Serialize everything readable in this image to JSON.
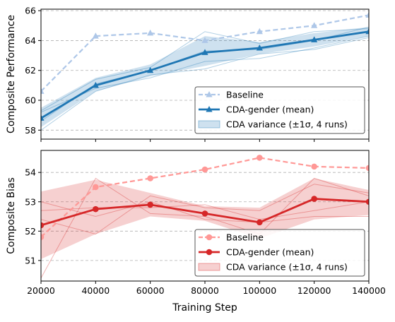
{
  "chart_data": [
    {
      "type": "line",
      "title": "",
      "xlabel": "",
      "ylabel": "Composite Performance",
      "x": [
        20000,
        40000,
        60000,
        80000,
        100000,
        120000,
        140000
      ],
      "xlim": [
        20000,
        140000
      ],
      "ylim": [
        57.4,
        66.1
      ],
      "yticks": [
        58,
        60,
        62,
        64,
        66
      ],
      "grid": "y-dashed",
      "legend_position": "lower-right",
      "colors": {
        "baseline": "#aec7e8",
        "mean": "#1f77b4",
        "band": "#1f77b4"
      },
      "series": [
        {
          "name": "Baseline",
          "style": "dashed",
          "marker": "triangle",
          "values": [
            60.6,
            64.3,
            64.5,
            64.0,
            64.6,
            65.0,
            65.7
          ]
        },
        {
          "name": "CDA-gender (mean)",
          "style": "solid",
          "marker": "triangle",
          "values": [
            58.8,
            61.0,
            62.0,
            63.2,
            63.5,
            64.05,
            64.6
          ]
        }
      ],
      "variance_band": {
        "name": "CDA variance (±1σ, 4 runs)",
        "lower": [
          58.2,
          60.6,
          61.6,
          62.3,
          63.1,
          63.6,
          64.3
        ],
        "upper": [
          59.5,
          61.5,
          62.4,
          64.3,
          63.9,
          64.5,
          64.9
        ]
      },
      "runs": [
        [
          58.0,
          60.6,
          61.7,
          62.1,
          63.1,
          63.4,
          64.2
        ],
        [
          59.3,
          61.4,
          62.2,
          64.6,
          63.8,
          64.6,
          64.8
        ],
        [
          58.6,
          61.1,
          62.0,
          63.3,
          63.4,
          64.0,
          64.9
        ],
        [
          59.2,
          60.8,
          61.5,
          62.6,
          62.8,
          63.5,
          64.3
        ]
      ]
    },
    {
      "type": "line",
      "title": "",
      "xlabel": "Training Step",
      "ylabel": "Composite Bias",
      "x": [
        20000,
        40000,
        60000,
        80000,
        100000,
        120000,
        140000
      ],
      "xlim": [
        20000,
        140000
      ],
      "ylim": [
        50.3,
        54.75
      ],
      "yticks": [
        51,
        52,
        53,
        54
      ],
      "xticks": [
        "20000",
        "40000",
        "60000",
        "80000",
        "100000",
        "120000",
        "140000"
      ],
      "grid": "y-dashed",
      "legend_position": "lower-right",
      "colors": {
        "baseline": "#ff9896",
        "mean": "#d62728",
        "band": "#d62728"
      },
      "series": [
        {
          "name": "Baseline",
          "style": "dashed",
          "marker": "circle",
          "values": [
            51.8,
            53.5,
            53.8,
            54.1,
            54.5,
            54.2,
            54.15
          ]
        },
        {
          "name": "CDA-gender (mean)",
          "style": "solid",
          "marker": "circle",
          "values": [
            52.2,
            52.75,
            52.9,
            52.6,
            52.3,
            53.1,
            53.0
          ]
        }
      ],
      "variance_band": {
        "name": "CDA variance (±1σ, 4 runs)",
        "lower": [
          51.05,
          51.9,
          52.5,
          52.35,
          51.75,
          52.4,
          52.55
        ],
        "upper": [
          53.35,
          53.75,
          53.3,
          52.85,
          52.8,
          53.8,
          53.4
        ]
      },
      "runs": [
        [
          50.4,
          53.8,
          52.6,
          52.5,
          51.9,
          53.8,
          53.2
        ],
        [
          52.4,
          51.9,
          53.2,
          52.8,
          52.7,
          53.6,
          53.3
        ],
        [
          53.0,
          52.5,
          53.0,
          52.4,
          52.3,
          52.5,
          52.5
        ],
        [
          52.7,
          52.8,
          52.8,
          52.9,
          52.4,
          52.7,
          53.0
        ]
      ]
    }
  ],
  "legends": [
    {
      "items": [
        "Baseline",
        "CDA-gender (mean)",
        "CDA variance (±1σ, 4 runs)"
      ]
    },
    {
      "items": [
        "Baseline",
        "CDA-gender (mean)",
        "CDA variance (±1σ, 4 runs)"
      ]
    }
  ]
}
